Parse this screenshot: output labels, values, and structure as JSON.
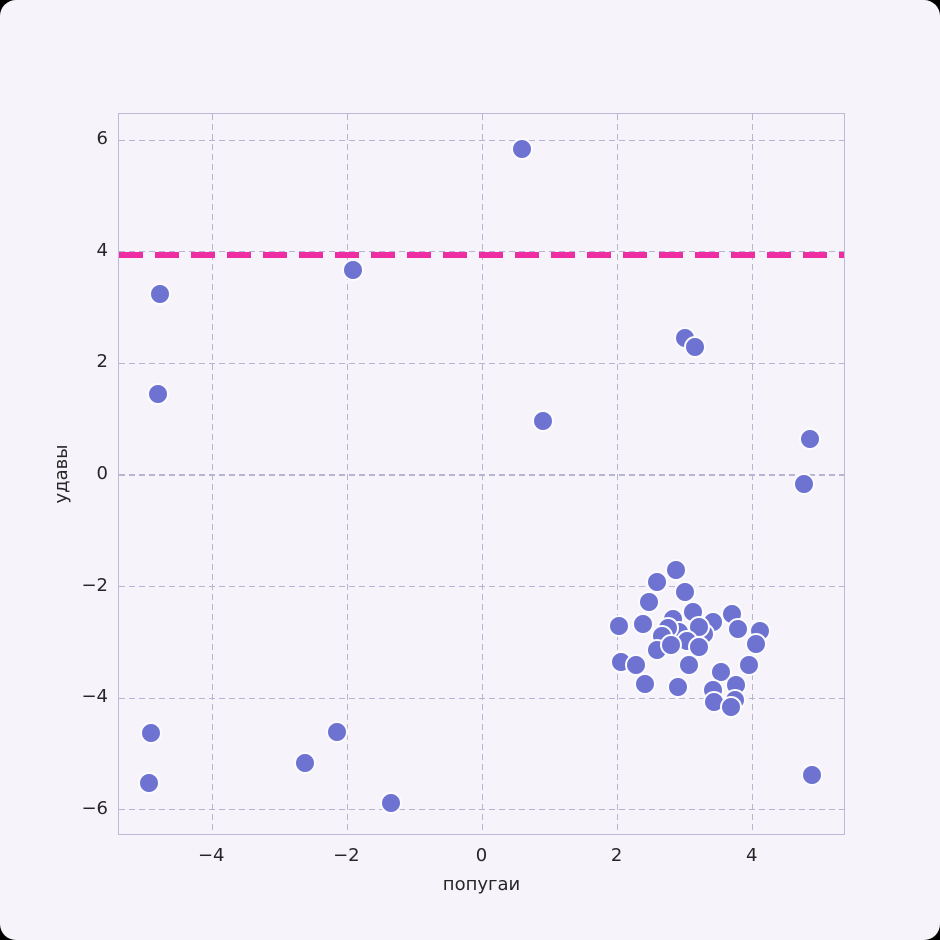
{
  "chart_data": {
    "type": "scatter",
    "title": "",
    "xlabel": "попугаи",
    "ylabel": "удавы",
    "xlim": [
      -5.38,
      5.38
    ],
    "ylim": [
      -6.47,
      6.47
    ],
    "grid": true,
    "xtick_values": [
      -4,
      -2,
      0,
      2,
      4
    ],
    "xtick_labels": [
      "−4",
      "−2",
      "0",
      "2",
      "4"
    ],
    "ytick_values": [
      -6,
      -4,
      -2,
      0,
      2,
      4,
      6
    ],
    "ytick_labels": [
      "−6",
      "−4",
      "−2",
      "0",
      "2",
      "4",
      "6"
    ],
    "hline": {
      "y": 3.95,
      "style": "dashed",
      "color": "#ef2da2"
    },
    "points": [
      [
        0.59,
        5.84
      ],
      [
        -1.92,
        3.68
      ],
      [
        -4.78,
        3.25
      ],
      [
        -4.81,
        1.46
      ],
      [
        3.0,
        2.45
      ],
      [
        3.15,
        2.29
      ],
      [
        0.89,
        0.96
      ],
      [
        4.85,
        0.64
      ],
      [
        4.76,
        -0.16
      ],
      [
        -4.91,
        -4.63
      ],
      [
        -4.93,
        -5.52
      ],
      [
        -2.16,
        -4.61
      ],
      [
        -2.62,
        -5.16
      ],
      [
        -1.35,
        -5.88
      ],
      [
        4.88,
        -5.38
      ],
      [
        2.87,
        -1.7
      ],
      [
        2.59,
        -1.92
      ],
      [
        3.0,
        -2.1
      ],
      [
        2.46,
        -2.27
      ],
      [
        3.12,
        -2.46
      ],
      [
        3.7,
        -2.49
      ],
      [
        2.02,
        -2.7
      ],
      [
        2.37,
        -2.67
      ],
      [
        2.82,
        -2.58
      ],
      [
        3.41,
        -2.64
      ],
      [
        2.91,
        -2.82
      ],
      [
        3.28,
        -2.85
      ],
      [
        3.78,
        -2.76
      ],
      [
        4.1,
        -2.79
      ],
      [
        2.74,
        -2.75
      ],
      [
        3.21,
        -2.73
      ],
      [
        2.65,
        -2.89
      ],
      [
        3.03,
        -2.98
      ],
      [
        2.05,
        -3.35
      ],
      [
        2.27,
        -3.41
      ],
      [
        2.59,
        -3.14
      ],
      [
        2.79,
        -3.05
      ],
      [
        3.06,
        -3.41
      ],
      [
        2.4,
        -3.74
      ],
      [
        2.89,
        -3.8
      ],
      [
        3.21,
        -3.08
      ],
      [
        3.53,
        -3.53
      ],
      [
        3.41,
        -3.86
      ],
      [
        3.75,
        -3.77
      ],
      [
        3.95,
        -3.41
      ],
      [
        3.43,
        -4.07
      ],
      [
        3.73,
        -4.04
      ],
      [
        4.05,
        -3.02
      ],
      [
        3.68,
        -4.16
      ]
    ],
    "colors": {
      "figure_background": "#f6f3fb",
      "plot_background": "#f6f3fb",
      "grid": "#b7b6d2",
      "spine": "#bcbad8",
      "point_fill": "#6e73d1",
      "point_edge": "#fcfbfe",
      "threshold": "#ef2da2",
      "text": "#262626"
    },
    "legend": null
  }
}
